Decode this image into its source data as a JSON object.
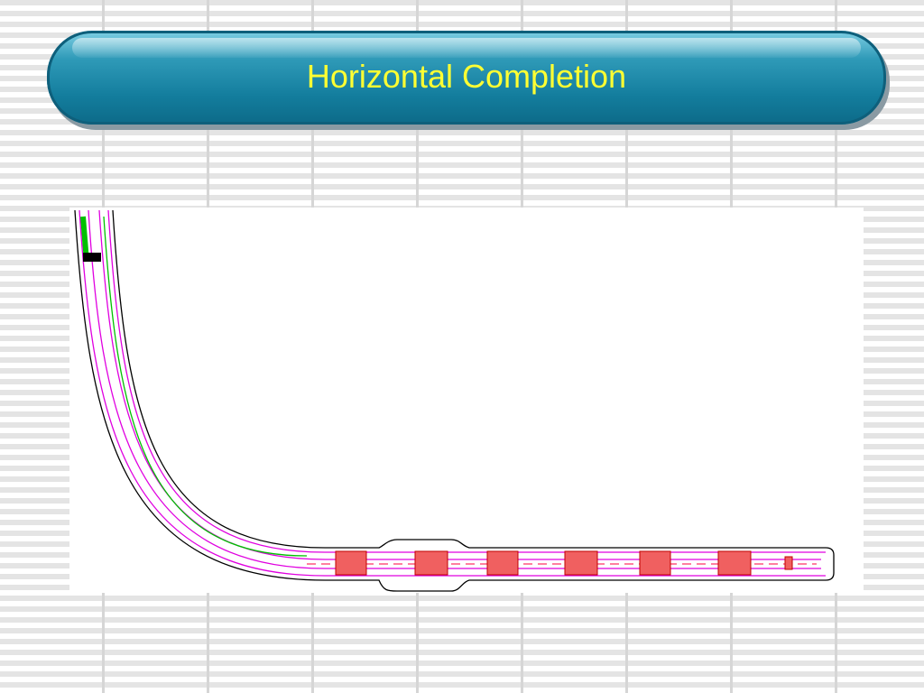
{
  "header": {
    "title": "Horizontal Completion"
  }
}
